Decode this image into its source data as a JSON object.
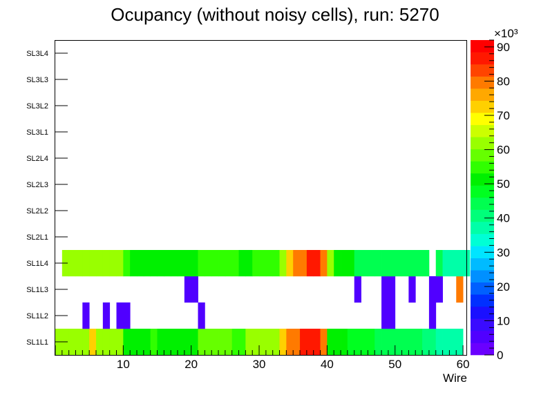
{
  "chart_data": {
    "type": "heatmap",
    "title": "Ocupancy (without noisy cells), run: 5270",
    "xlabel": "Wire",
    "ylabel": "",
    "xlim": [
      0,
      60.5
    ],
    "x_ticks": [
      10,
      20,
      30,
      40,
      50,
      60
    ],
    "y_categories": [
      "SL1L1",
      "SL1L2",
      "SL1L3",
      "SL1L4",
      "SL2L1",
      "SL2L2",
      "SL2L3",
      "SL2L4",
      "SL3L1",
      "SL3L2",
      "SL3L3",
      "SL3L4"
    ],
    "colorbar": {
      "min": 0,
      "max": 92,
      "ticks": [
        0,
        10,
        20,
        30,
        40,
        50,
        60,
        70,
        80,
        90
      ],
      "exponent_label": "×10³",
      "colors": [
        "#6a00ff",
        "#5000ff",
        "#3a0bff",
        "#1a10ff",
        "#0030ff",
        "#0060ff",
        "#0090ff",
        "#00bbff",
        "#00e5ff",
        "#00ffd5",
        "#00ffa8",
        "#00ff7a",
        "#00ff50",
        "#00ff20",
        "#00f000",
        "#30ff00",
        "#66ff00",
        "#99ff00",
        "#ccff00",
        "#ffff00",
        "#ffd000",
        "#ffa800",
        "#ff7a00",
        "#ff4400",
        "#ff1800",
        "#ff0000"
      ]
    },
    "rows": [
      {
        "layer": "SL1L1",
        "x0": 0,
        "values": [
          62,
          62,
          62,
          62,
          62,
          71,
          62,
          62,
          62,
          62,
          50,
          50,
          50,
          50,
          55,
          50,
          50,
          50,
          50,
          50,
          50,
          60,
          60,
          60,
          60,
          60,
          56,
          56,
          62,
          62,
          62,
          62,
          62,
          74,
          78,
          80,
          85,
          88,
          88,
          80,
          50,
          50,
          50,
          46,
          46,
          46,
          46,
          43,
          43,
          43,
          43,
          43,
          43,
          43,
          40,
          40,
          38,
          38,
          38,
          38
        ]
      },
      {
        "layer": "SL1L2",
        "x0": 0,
        "values": [
          null,
          null,
          null,
          null,
          6,
          null,
          null,
          6,
          null,
          6,
          6,
          null,
          null,
          null,
          null,
          null,
          null,
          null,
          null,
          null,
          null,
          6,
          null,
          null,
          null,
          null,
          null,
          null,
          null,
          null,
          null,
          null,
          null,
          null,
          null,
          null,
          null,
          null,
          null,
          null,
          null,
          null,
          null,
          null,
          null,
          null,
          null,
          null,
          6,
          6,
          null,
          null,
          null,
          null,
          null,
          6,
          null,
          null,
          null,
          null
        ]
      },
      {
        "layer": "SL1L3",
        "x0": 0,
        "values": [
          null,
          null,
          null,
          null,
          null,
          null,
          null,
          null,
          null,
          null,
          null,
          null,
          null,
          null,
          null,
          null,
          null,
          null,
          null,
          6,
          6,
          null,
          null,
          null,
          null,
          null,
          null,
          null,
          null,
          null,
          null,
          null,
          null,
          null,
          null,
          null,
          null,
          null,
          null,
          null,
          null,
          null,
          null,
          null,
          6,
          null,
          null,
          null,
          6,
          6,
          null,
          null,
          6,
          null,
          null,
          6,
          6,
          null,
          null,
          80
        ]
      },
      {
        "layer": "SL1L4",
        "x0": 1,
        "values": [
          62,
          62,
          62,
          62,
          62,
          62,
          62,
          62,
          62,
          55,
          50,
          50,
          50,
          50,
          50,
          50,
          50,
          50,
          50,
          50,
          55,
          55,
          55,
          55,
          55,
          55,
          52,
          52,
          55,
          55,
          55,
          55,
          62,
          74,
          78,
          80,
          85,
          85,
          80,
          62,
          52,
          52,
          52,
          45,
          45,
          45,
          45,
          43,
          43,
          43,
          43,
          43,
          43,
          43,
          null,
          45,
          38,
          38,
          38,
          38
        ]
      }
    ],
    "empty_layers": [
      "SL2L1",
      "SL2L2",
      "SL2L3",
      "SL2L4",
      "SL3L1",
      "SL3L2",
      "SL3L3",
      "SL3L4"
    ]
  }
}
